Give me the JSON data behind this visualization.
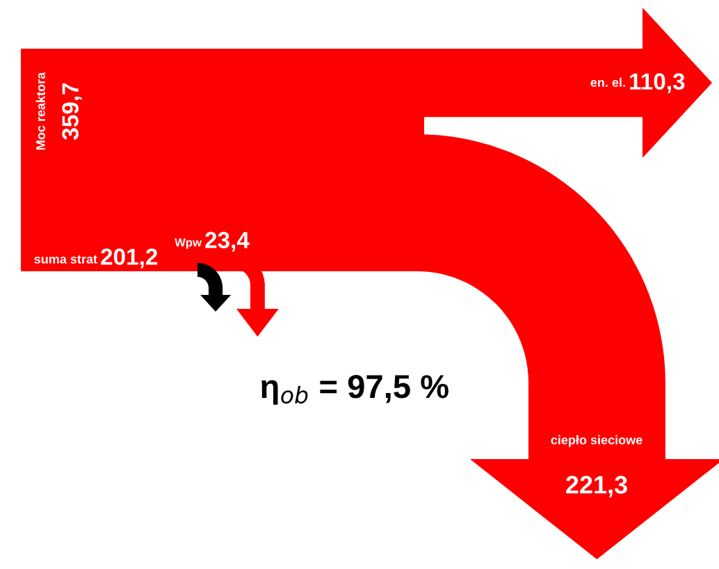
{
  "chart_data": {
    "type": "other",
    "categories": [
      "Moc reaktora",
      "en. el.",
      "ciepło sieciowe",
      "Wpw",
      "suma strat"
    ],
    "values": [
      359.7,
      110.3,
      221.3,
      23.4,
      201.2
    ],
    "value_labels": [
      "359,7",
      "110,3",
      "221,3",
      "23,4",
      "201,2"
    ],
    "color": "#ff0000",
    "annotations": [
      "η$_{ob}$ = 97,5 %"
    ]
  }
}
